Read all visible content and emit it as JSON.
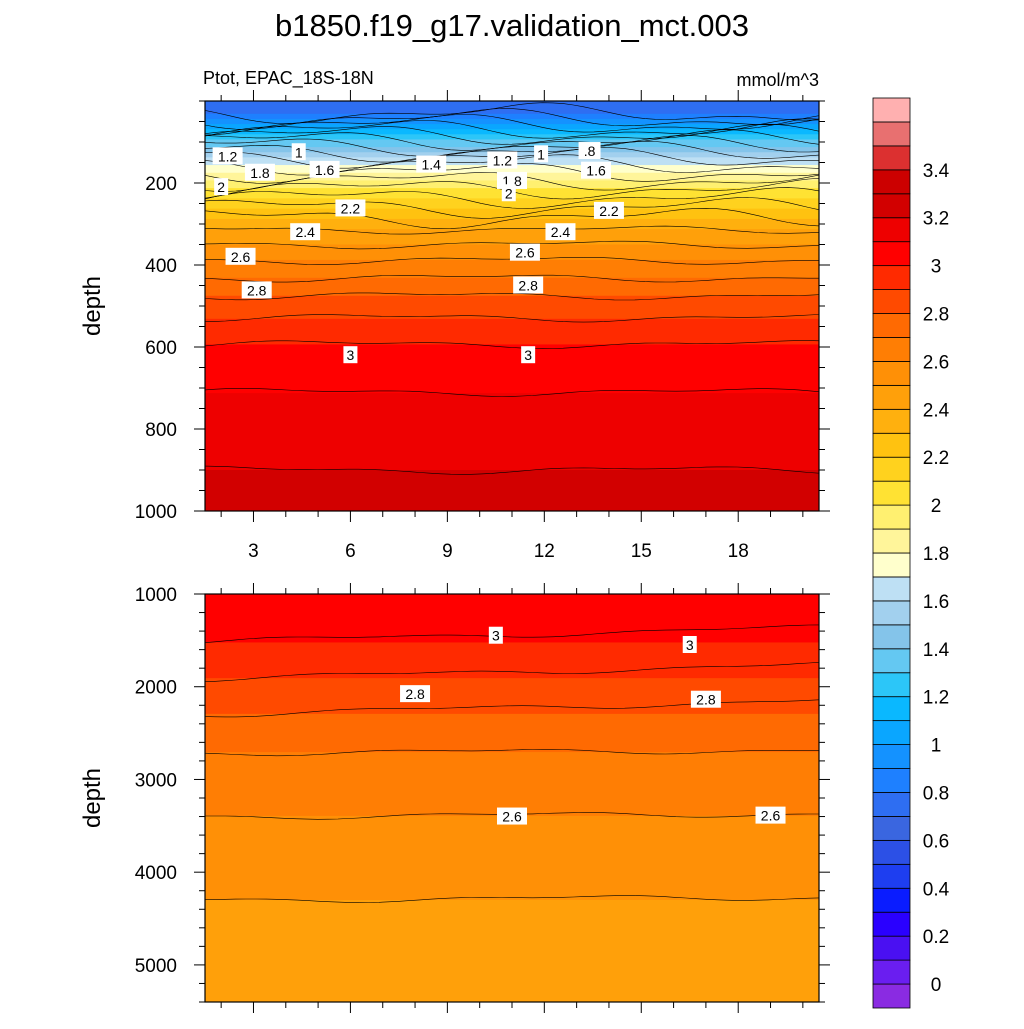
{
  "chart_data": {
    "type": "contour",
    "title": "b1850.f19_g17.validation_mct.003",
    "variable": "Ptot, EPAC_18S-18N",
    "units": "mmol/m^3",
    "colorbar": {
      "levels": [
        -0.1,
        0,
        0.1,
        0.2,
        0.3,
        0.4,
        0.5,
        0.6,
        0.7,
        0.8,
        0.9,
        1.0,
        1.1,
        1.2,
        1.3,
        1.4,
        1.5,
        1.6,
        1.7,
        1.8,
        1.9,
        2.0,
        2.1,
        2.2,
        2.3,
        2.4,
        2.5,
        2.6,
        2.7,
        2.8,
        2.9,
        3.0,
        3.1,
        3.2,
        3.3,
        3.4,
        3.5,
        3.6
      ],
      "colors": [
        "#8a2be2",
        "#6a1ef0",
        "#4a10f2",
        "#2a00ff",
        "#0a1cff",
        "#1e3ef0",
        "#2c50e6",
        "#3a66e0",
        "#2e6ef2",
        "#1e80ff",
        "#1492ff",
        "#0aa6ff",
        "#0ab8ff",
        "#2cc6f8",
        "#64c8f2",
        "#84c4ea",
        "#a2d0ee",
        "#bee0f4",
        "#ffffcc",
        "#fff59a",
        "#fff070",
        "#ffe233",
        "#ffd21e",
        "#ffc210",
        "#ffb00e",
        "#ffa00a",
        "#ff9006",
        "#ff7e04",
        "#ff6a02",
        "#ff4a00",
        "#ff2a00",
        "#ff0000",
        "#ee0000",
        "#d20000",
        "#cc0000",
        "#dc3030",
        "#e87070",
        "#ffb0b0"
      ],
      "tick_labels": [
        "0",
        "0.2",
        "0.4",
        "0.6",
        "0.8",
        "1",
        "1.2",
        "1.4",
        "1.6",
        "1.8",
        "2",
        "2.2",
        "2.4",
        "2.6",
        "2.8",
        "3",
        "3.2",
        "3.4"
      ],
      "tick_values": [
        0,
        0.2,
        0.4,
        0.6,
        0.8,
        1.0,
        1.2,
        1.4,
        1.6,
        1.8,
        2.0,
        2.2,
        2.4,
        2.6,
        2.8,
        3.0,
        3.2,
        3.4
      ]
    },
    "x_ticks": [
      "3",
      "6",
      "9",
      "12",
      "15",
      "18"
    ],
    "x_tick_values": [
      3,
      6,
      9,
      12,
      15,
      18
    ],
    "xlim": [
      1.5,
      20.5
    ],
    "panels": [
      {
        "name": "upper",
        "ylabel": "depth",
        "ylim": [
          0,
          1000
        ],
        "y_ticks": [
          "200",
          "400",
          "600",
          "800",
          "1000"
        ],
        "y_tick_values": [
          200,
          400,
          600,
          800,
          1000
        ],
        "profile": {
          "depth": [
            0,
            30,
            50,
            70,
            90,
            110,
            130,
            150,
            170,
            190,
            210,
            230,
            250,
            270,
            290,
            320,
            350,
            380,
            410,
            440,
            470,
            500,
            540,
            580,
            620,
            680,
            740,
            800,
            900,
            1000
          ],
          "value": [
            0.7,
            0.8,
            0.95,
            1.1,
            1.25,
            1.4,
            1.55,
            1.68,
            1.78,
            1.88,
            1.98,
            2.07,
            2.16,
            2.24,
            2.32,
            2.42,
            2.5,
            2.58,
            2.65,
            2.72,
            2.79,
            2.85,
            2.92,
            2.98,
            3.04,
            3.08,
            3.12,
            3.16,
            3.2,
            3.21
          ]
        },
        "contour_labels": [
          {
            "text": "1.2",
            "x": 2.2,
            "y": 135
          },
          {
            "text": "1",
            "x": 4.4,
            "y": 125
          },
          {
            "text": "1.8",
            "x": 3.2,
            "y": 175
          },
          {
            "text": "1.6",
            "x": 5.2,
            "y": 168
          },
          {
            "text": "1.4",
            "x": 8.5,
            "y": 155
          },
          {
            "text": "1.2",
            "x": 10.7,
            "y": 145
          },
          {
            "text": "1",
            "x": 11.9,
            "y": 130
          },
          {
            "text": ".8",
            "x": 13.4,
            "y": 122
          },
          {
            "text": "1.6",
            "x": 13.6,
            "y": 170
          },
          {
            "text": "1.8",
            "x": 11.0,
            "y": 195
          },
          {
            "text": "2",
            "x": 2.0,
            "y": 210
          },
          {
            "text": "2",
            "x": 10.9,
            "y": 225
          },
          {
            "text": "2.2",
            "x": 6.0,
            "y": 262
          },
          {
            "text": "2.2",
            "x": 14.0,
            "y": 268
          },
          {
            "text": "2.4",
            "x": 4.6,
            "y": 320
          },
          {
            "text": "2.4",
            "x": 12.5,
            "y": 320
          },
          {
            "text": "2.6",
            "x": 2.6,
            "y": 380
          },
          {
            "text": "2.6",
            "x": 11.4,
            "y": 370
          },
          {
            "text": "2.8",
            "x": 3.1,
            "y": 462
          },
          {
            "text": "2.8",
            "x": 11.5,
            "y": 450
          },
          {
            "text": "3",
            "x": 6.0,
            "y": 620
          },
          {
            "text": "3",
            "x": 11.5,
            "y": 620
          }
        ]
      },
      {
        "name": "lower",
        "ylabel": "depth",
        "ylim": [
          1000,
          5400
        ],
        "y_ticks": [
          "1000",
          "2000",
          "3000",
          "4000",
          "5000"
        ],
        "y_tick_values": [
          1000,
          2000,
          3000,
          4000,
          5000
        ],
        "profile": {
          "depth": [
            1000,
            1400,
            1700,
            2000,
            2300,
            2600,
            3000,
            3400,
            3800,
            4300,
            4800,
            5400
          ],
          "value": [
            3.1,
            3.03,
            2.95,
            2.88,
            2.8,
            2.72,
            2.65,
            2.6,
            2.55,
            2.5,
            2.45,
            2.42
          ]
        },
        "contour_labels": [
          {
            "text": "3",
            "x": 10.5,
            "y": 1450
          },
          {
            "text": "3",
            "x": 16.5,
            "y": 1550
          },
          {
            "text": "2.8",
            "x": 8.0,
            "y": 2080
          },
          {
            "text": "2.8",
            "x": 17.0,
            "y": 2140
          },
          {
            "text": "2.6",
            "x": 11.0,
            "y": 3400
          },
          {
            "text": "2.6",
            "x": 19.0,
            "y": 3390
          }
        ]
      }
    ]
  }
}
